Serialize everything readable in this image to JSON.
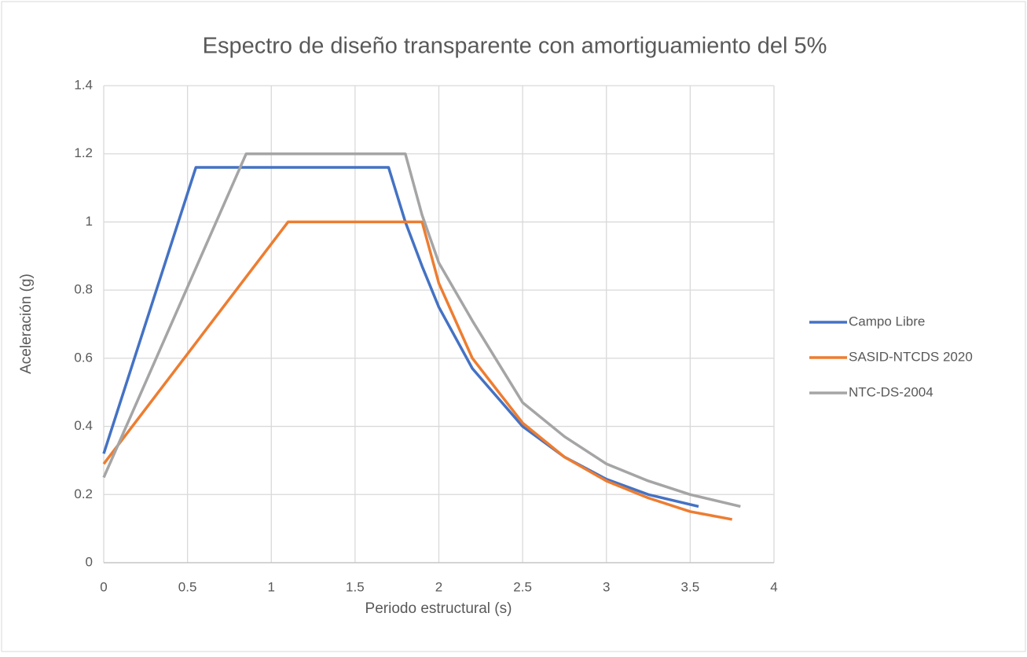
{
  "chart_data": {
    "type": "line",
    "title": "Espectro de diseño transparente con amortiguamiento del 5%",
    "x_label": "Periodo estructural (s)",
    "y_label": "Aceleración (g)",
    "xlim": [
      0,
      4
    ],
    "xticks": [
      0,
      0.5,
      1,
      1.5,
      2,
      2.5,
      3,
      3.5,
      4
    ],
    "ylim": [
      0,
      1.4
    ],
    "yticks": [
      0,
      0.2,
      0.4,
      0.6,
      0.8,
      1,
      1.2,
      1.4
    ],
    "grid": true,
    "legend": "right",
    "series": [
      {
        "name": "Campo Libre",
        "color": "#4472c4",
        "x": [
          0,
          0.55,
          1.7,
          1.8,
          1.9,
          2.0,
          2.2,
          2.5,
          2.75,
          3.0,
          3.25,
          3.55
        ],
        "values": [
          0.32,
          1.16,
          1.16,
          1.0,
          0.87,
          0.75,
          0.57,
          0.4,
          0.31,
          0.245,
          0.2,
          0.165
        ]
      },
      {
        "name": "SASID-NTCDS 2020",
        "color": "#ed7d31",
        "x": [
          0,
          1.1,
          1.9,
          2.0,
          2.2,
          2.5,
          2.75,
          3.0,
          3.25,
          3.5,
          3.75
        ],
        "values": [
          0.29,
          1.0,
          1.0,
          0.82,
          0.6,
          0.41,
          0.31,
          0.24,
          0.19,
          0.15,
          0.127
        ]
      },
      {
        "name": "NTC-DS-2004",
        "color": "#a5a5a5",
        "x": [
          0,
          0.85,
          1.8,
          1.9,
          2.0,
          2.2,
          2.5,
          2.75,
          3.0,
          3.25,
          3.5,
          3.8
        ],
        "values": [
          0.25,
          1.2,
          1.2,
          1.02,
          0.88,
          0.71,
          0.47,
          0.37,
          0.29,
          0.24,
          0.2,
          0.165
        ]
      }
    ]
  }
}
